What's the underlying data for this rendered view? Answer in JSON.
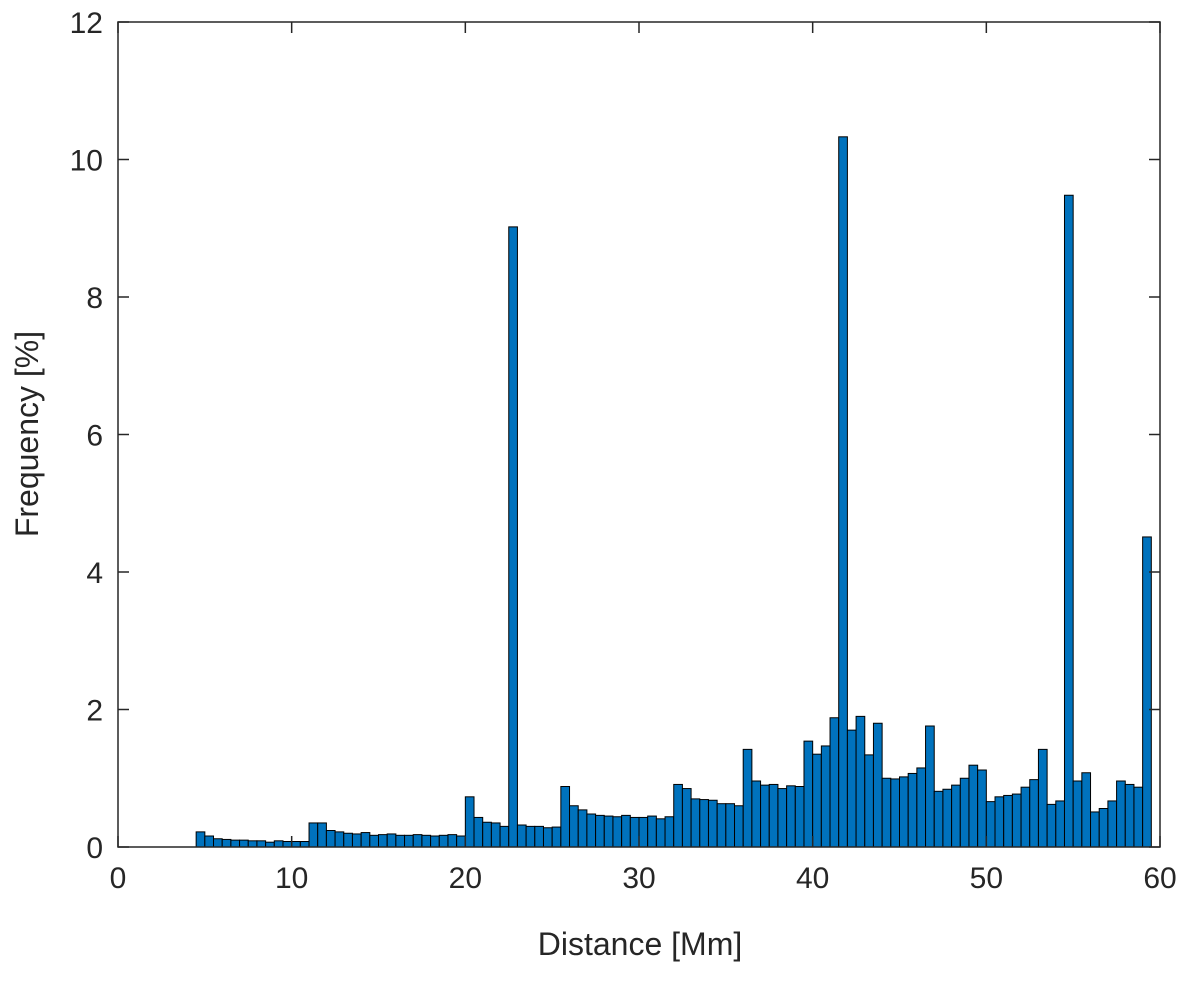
{
  "chart_data": {
    "type": "bar",
    "xlabel": "Distance [Mm]",
    "ylabel": "Frequency [%]",
    "xlim": [
      0,
      60
    ],
    "ylim": [
      0,
      12
    ],
    "xticks": [
      "0",
      "10",
      "20",
      "30",
      "40",
      "50",
      "60"
    ],
    "yticks": [
      "0",
      "2",
      "4",
      "6",
      "8",
      "10",
      "12"
    ],
    "grid": false,
    "box": true,
    "bar_color": "#0072BD",
    "edge_color": "#000000",
    "bin_width": 0.5,
    "x": [
      4.75,
      5.25,
      5.75,
      6.25,
      6.75,
      7.25,
      7.75,
      8.25,
      8.75,
      9.25,
      9.75,
      10.25,
      10.75,
      11.25,
      11.75,
      12.25,
      12.75,
      13.25,
      13.75,
      14.25,
      14.75,
      15.25,
      15.75,
      16.25,
      16.75,
      17.25,
      17.75,
      18.25,
      18.75,
      19.25,
      19.75,
      20.25,
      20.75,
      21.25,
      21.75,
      22.25,
      22.75,
      23.25,
      23.75,
      24.25,
      24.75,
      25.25,
      25.75,
      26.25,
      26.75,
      27.25,
      27.75,
      28.25,
      28.75,
      29.25,
      29.75,
      30.25,
      30.75,
      31.25,
      31.75,
      32.25,
      32.75,
      33.25,
      33.75,
      34.25,
      34.75,
      35.25,
      35.75,
      36.25,
      36.75,
      37.25,
      37.75,
      38.25,
      38.75,
      39.25,
      39.75,
      40.25,
      40.75,
      41.25,
      41.75,
      42.25,
      42.75,
      43.25,
      43.75,
      44.25,
      44.75,
      45.25,
      45.75,
      46.25,
      46.75,
      47.25,
      47.75,
      48.25,
      48.75,
      49.25,
      49.75,
      50.25,
      50.75,
      51.25,
      51.75,
      52.25,
      52.75,
      53.25,
      53.75,
      54.25,
      54.75,
      55.25,
      55.75,
      56.25,
      56.75,
      57.25,
      57.75,
      58.25,
      58.75,
      59.25
    ],
    "values": [
      0.22,
      0.16,
      0.12,
      0.11,
      0.1,
      0.1,
      0.09,
      0.09,
      0.07,
      0.09,
      0.08,
      0.08,
      0.08,
      0.35,
      0.35,
      0.24,
      0.22,
      0.2,
      0.19,
      0.21,
      0.17,
      0.18,
      0.19,
      0.17,
      0.17,
      0.18,
      0.17,
      0.16,
      0.17,
      0.18,
      0.16,
      0.73,
      0.43,
      0.36,
      0.35,
      0.3,
      9.02,
      0.32,
      0.3,
      0.3,
      0.28,
      0.29,
      0.88,
      0.6,
      0.54,
      0.48,
      0.46,
      0.45,
      0.44,
      0.46,
      0.43,
      0.43,
      0.45,
      0.41,
      0.44,
      0.91,
      0.85,
      0.7,
      0.69,
      0.68,
      0.63,
      0.63,
      0.6,
      1.42,
      0.96,
      0.9,
      0.91,
      0.85,
      0.89,
      0.88,
      1.54,
      1.35,
      1.47,
      1.88,
      10.33,
      1.7,
      1.9,
      1.34,
      1.8,
      1.0,
      0.99,
      1.02,
      1.07,
      1.15,
      1.76,
      0.81,
      0.84,
      0.9,
      1.0,
      1.19,
      1.12,
      0.66,
      0.73,
      0.75,
      0.77,
      0.87,
      0.98,
      1.42,
      0.62,
      0.67,
      9.48,
      0.96,
      1.08,
      0.51,
      0.56,
      0.67,
      0.96,
      0.91,
      0.87,
      4.51
    ]
  }
}
